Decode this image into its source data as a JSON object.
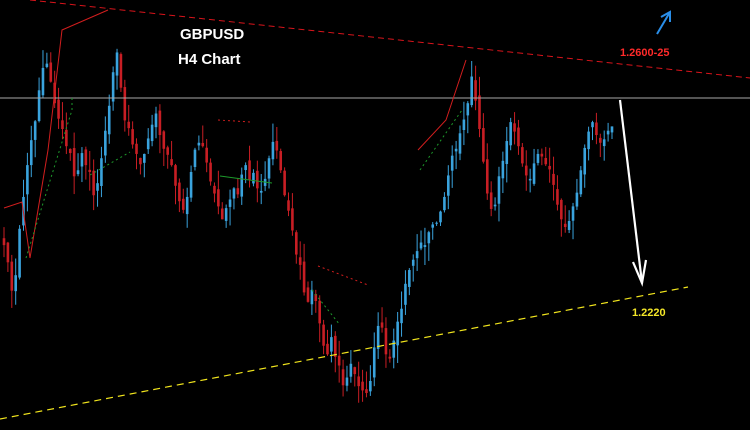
{
  "chart_data": {
    "type": "candlestick",
    "symbol": "GBPUSD",
    "timeframe_label": "H4 Chart",
    "price_range": [
      1.215,
      1.265
    ],
    "levels": {
      "resistance": {
        "label": "1.2600-25",
        "color": "#d9141b"
      },
      "support": {
        "label": "1.2220",
        "color": "#f1e51d"
      },
      "horizontal_reference": {
        "color": "#a7a7a7"
      }
    },
    "colors": {
      "bull": "#3aa3dd",
      "bear": "#c81e24",
      "projection_down": "#ffffff",
      "projection_up": "#2a8ee8",
      "swing_up": "#1d9a2b",
      "swing_down": "#d21e1e"
    },
    "series_close": [
      1.2365,
      1.2345,
      1.2312,
      1.233,
      1.2384,
      1.2421,
      1.2458,
      1.2487,
      1.2509,
      1.2545,
      1.2571,
      1.2576,
      1.2555,
      1.253,
      1.2512,
      1.25,
      1.248,
      1.2472,
      1.2445,
      1.2452,
      1.2472,
      1.2458,
      1.245,
      1.2423,
      1.2437,
      1.2466,
      1.2498,
      1.2527,
      1.2566,
      1.2589,
      1.2548,
      1.251,
      1.2501,
      1.2482,
      1.2471,
      1.2459,
      1.2471,
      1.2489,
      1.2505,
      1.2518,
      1.2493,
      1.2477,
      1.247,
      1.2458,
      1.2434,
      1.2416,
      1.2406,
      1.2421,
      1.245,
      1.2476,
      1.2484,
      1.248,
      1.2461,
      1.2439,
      1.2425,
      1.241,
      1.2395,
      1.2408,
      1.2418,
      1.2431,
      1.2424,
      1.2447,
      1.2458,
      1.2441,
      1.2449,
      1.2431,
      1.2428,
      1.2442,
      1.2466,
      1.2485,
      1.2475,
      1.2452,
      1.2423,
      1.2405,
      1.2382,
      1.2354,
      1.2342,
      1.231,
      1.2299,
      1.2313,
      1.23,
      1.2274,
      1.2248,
      1.2238,
      1.2258,
      1.2235,
      1.2225,
      1.2202,
      1.2211,
      1.2227,
      1.2215,
      1.2201,
      1.2196,
      1.2193,
      1.2207,
      1.2246,
      1.2271,
      1.2269,
      1.2238,
      1.2233,
      1.2254,
      1.2276,
      1.2291,
      1.232,
      1.2336,
      1.2348,
      1.2358,
      1.2368,
      1.2365,
      1.238,
      1.2389,
      1.2391,
      1.2404,
      1.2421,
      1.2446,
      1.2469,
      1.2477,
      1.2495,
      1.2511,
      1.253,
      1.2561,
      1.2533,
      1.25,
      1.2462,
      1.2425,
      1.2407,
      1.2412,
      1.2445,
      1.2463,
      1.2486,
      1.2508,
      1.2497,
      1.248,
      1.246,
      1.2446,
      1.2442,
      1.246,
      1.2471,
      1.2468,
      1.2459,
      1.2453,
      1.2435,
      1.2412,
      1.2395,
      1.2386,
      1.2393,
      1.241,
      1.2426,
      1.2452,
      1.2478,
      1.2497,
      1.2508,
      1.2493,
      1.2484,
      1.2488,
      1.2498,
      1.2503
    ]
  }
}
